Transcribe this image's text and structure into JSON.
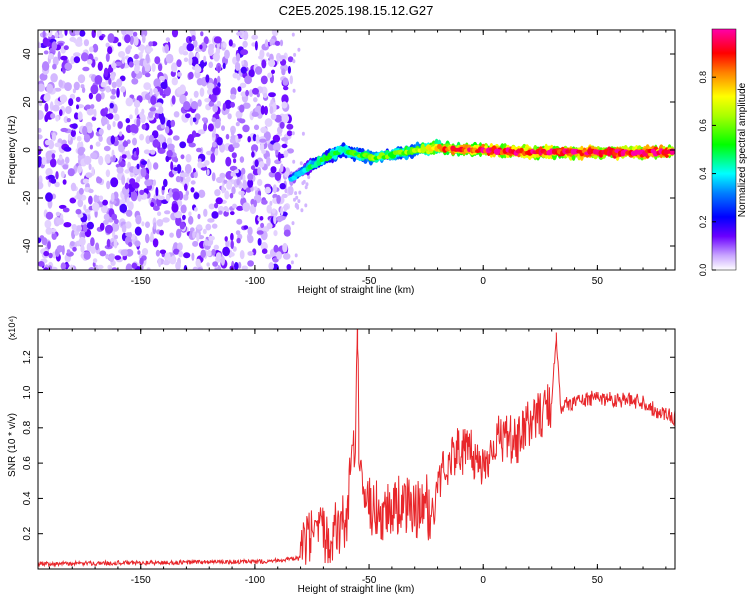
{
  "figure_title": "C2E5.2025.198.15.12.G27",
  "chart_data": [
    {
      "type": "heatmap",
      "title": "C2E5.2025.198.15.12.G27",
      "xlabel": "Height of straight line (km)",
      "ylabel": "Frequency (Hz)",
      "xlim": [
        -195,
        84
      ],
      "ylim": [
        -50,
        50
      ],
      "x_ticks": [
        -150,
        -100,
        -50,
        0,
        50
      ],
      "y_ticks": [
        -40,
        -20,
        0,
        20,
        40
      ],
      "x_tick_labels": [
        "-150",
        "-100",
        "-50",
        "0",
        "50"
      ],
      "y_tick_labels": [
        "-40",
        "-20",
        "0",
        "20",
        "40"
      ],
      "colorbar": {
        "label": "Normalized spectral amplitude",
        "range": [
          0,
          1
        ],
        "ticks": [
          0.0,
          0.2,
          0.4,
          0.6,
          0.8
        ],
        "tick_labels": [
          "0.0",
          "0.2",
          "0.4",
          "0.6",
          "0.8"
        ],
        "colormap": [
          "#ffffff",
          "#6a00ff",
          "#0000ff",
          "#00ffff",
          "#00ff00",
          "#ffff00",
          "#ff8000",
          "#ff0000",
          "#ff00aa"
        ]
      },
      "noise_region_x": [
        -195,
        -84
      ],
      "signal_track": {
        "x": [
          -84,
          -78,
          -70,
          -62,
          -55,
          -48,
          -40,
          -30,
          -20,
          -10,
          0,
          20,
          40,
          60,
          84
        ],
        "freq": [
          -12,
          -8,
          -4,
          0,
          -2,
          -3,
          -2,
          0,
          1,
          0,
          0,
          -1,
          -1,
          -1,
          -1
        ],
        "amplitude": [
          0.35,
          0.45,
          0.55,
          0.5,
          0.55,
          0.6,
          0.6,
          0.65,
          0.8,
          0.9,
          0.95,
          0.95,
          0.95,
          0.98,
          1.0
        ]
      },
      "grid": false
    },
    {
      "type": "line",
      "xlabel": "Height of straight line (km)",
      "ylabel": "SNR (10 * v/v)",
      "y_multiplier": "(x10⁴)",
      "xlim": [
        -195,
        84
      ],
      "ylim": [
        0,
        1.36
      ],
      "x_ticks": [
        -150,
        -100,
        -50,
        0,
        50
      ],
      "y_ticks": [
        0.2,
        0.4,
        0.6,
        0.8,
        1.0,
        1.2
      ],
      "x_tick_labels": [
        "-150",
        "-100",
        "-50",
        "0",
        "50"
      ],
      "y_tick_labels": [
        "0.2",
        "0.4",
        "0.6",
        "0.8",
        "1.0",
        "1.2"
      ],
      "color": "#e8262a",
      "series": [
        {
          "x": [
            -195,
            -180,
            -160,
            -140,
            -120,
            -100,
            -90,
            -80,
            -75,
            -70,
            -65,
            -60,
            -58,
            -56,
            -55,
            -54,
            -52,
            -50,
            -45,
            -40,
            -35,
            -30,
            -25,
            -22,
            -20,
            -15,
            -10,
            -5,
            0,
            5,
            10,
            15,
            20,
            25,
            30,
            32,
            34,
            40,
            50,
            60,
            70,
            75,
            80,
            84
          ],
          "y": [
            0.03,
            0.03,
            0.035,
            0.035,
            0.04,
            0.04,
            0.05,
            0.06,
            0.1,
            0.12,
            0.15,
            0.2,
            0.5,
            0.6,
            1.25,
            0.45,
            0.2,
            0.3,
            0.25,
            0.28,
            0.3,
            0.25,
            0.3,
            0.2,
            0.45,
            0.6,
            0.65,
            0.62,
            0.55,
            0.7,
            0.72,
            0.68,
            0.8,
            0.85,
            0.9,
            1.34,
            0.92,
            0.95,
            0.97,
            0.96,
            0.95,
            0.9,
            0.88,
            0.86
          ]
        }
      ],
      "grid": false
    }
  ]
}
